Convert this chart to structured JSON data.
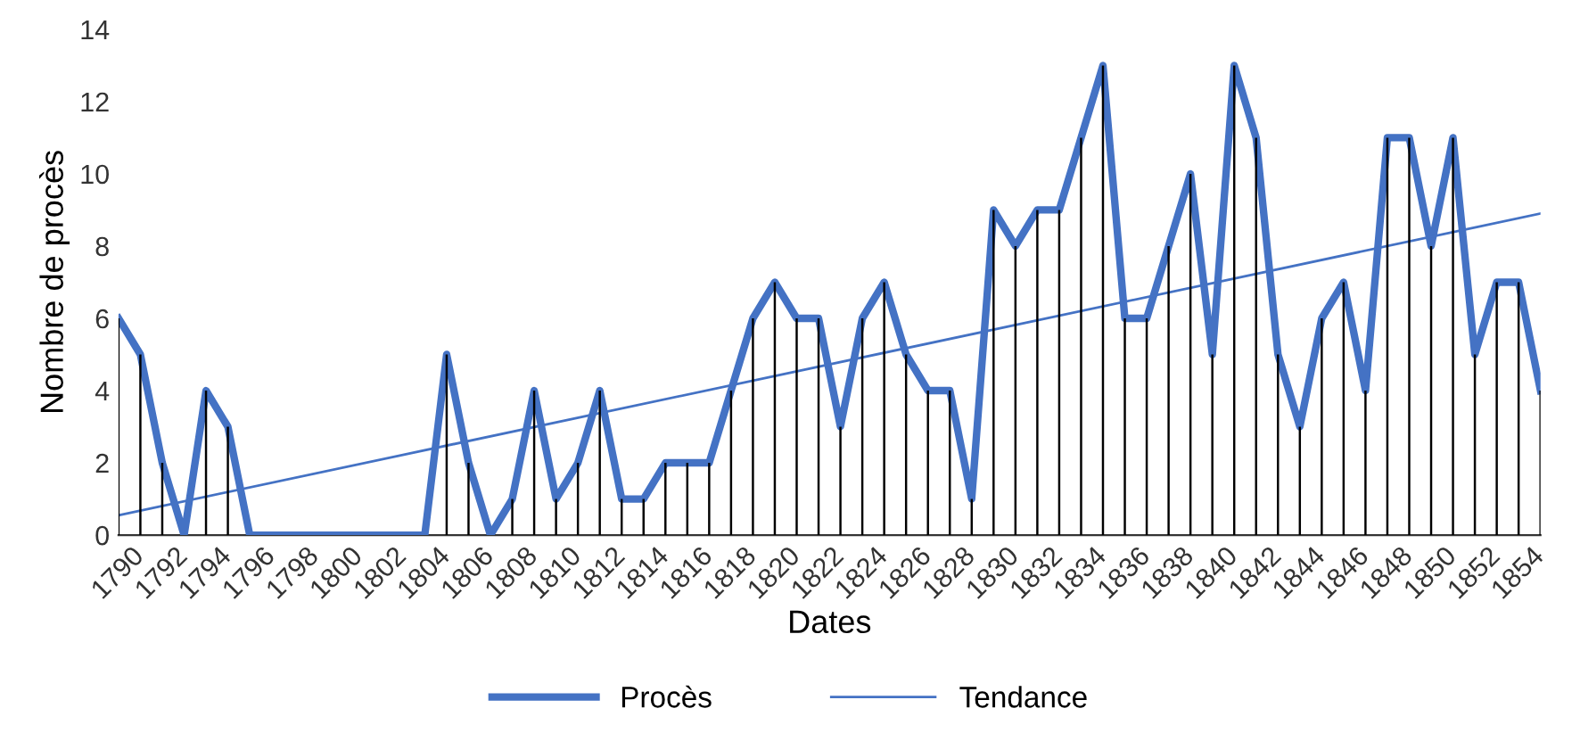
{
  "chart_data": {
    "type": "line",
    "xlabel": "Dates",
    "ylabel": "Nombre de procès",
    "x": [
      1790,
      1791,
      1792,
      1793,
      1794,
      1795,
      1796,
      1797,
      1798,
      1799,
      1800,
      1801,
      1802,
      1803,
      1804,
      1805,
      1806,
      1807,
      1808,
      1809,
      1810,
      1811,
      1812,
      1813,
      1814,
      1815,
      1816,
      1817,
      1818,
      1819,
      1820,
      1821,
      1822,
      1823,
      1824,
      1825,
      1826,
      1827,
      1828,
      1829,
      1830,
      1831,
      1832,
      1833,
      1834,
      1835,
      1836,
      1837,
      1838,
      1839,
      1840,
      1841,
      1842,
      1843,
      1844,
      1845,
      1846,
      1847,
      1848,
      1849,
      1850,
      1851,
      1852,
      1853,
      1854,
      1855
    ],
    "series": [
      {
        "name": "Procès",
        "color": "#4472c4",
        "values": [
          6,
          5,
          2,
          0,
          4,
          3,
          0,
          0,
          0,
          0,
          0,
          0,
          0,
          0,
          0,
          5,
          2,
          0,
          1,
          4,
          1,
          2,
          4,
          1,
          1,
          2,
          2,
          2,
          4,
          6,
          7,
          6,
          6,
          3,
          6,
          7,
          5,
          4,
          4,
          1,
          9,
          8,
          9,
          9,
          11,
          13,
          6,
          6,
          8,
          10,
          5,
          13,
          11,
          5,
          3,
          6,
          7,
          4,
          11,
          11,
          8,
          11,
          5,
          7,
          7,
          4
        ]
      },
      {
        "type": "bar",
        "color": "#000000",
        "values": [
          6,
          5,
          2,
          0,
          4,
          3,
          0,
          0,
          0,
          0,
          0,
          0,
          0,
          0,
          0,
          5,
          2,
          0,
          1,
          4,
          1,
          2,
          4,
          1,
          1,
          2,
          2,
          2,
          4,
          6,
          7,
          6,
          6,
          3,
          6,
          7,
          5,
          4,
          4,
          1,
          9,
          8,
          9,
          9,
          11,
          13,
          6,
          6,
          8,
          10,
          5,
          13,
          11,
          5,
          3,
          6,
          7,
          4,
          11,
          11,
          8,
          11,
          5,
          7,
          7,
          4
        ]
      },
      {
        "name": "Tendance",
        "color": "#4472c4",
        "type": "line",
        "x": [
          1790,
          1855
        ],
        "values": [
          0.55,
          8.9
        ]
      }
    ],
    "xlim": [
      1790,
      1855
    ],
    "xticks": [
      1790,
      1792,
      1794,
      1796,
      1798,
      1800,
      1802,
      1804,
      1806,
      1808,
      1810,
      1812,
      1814,
      1816,
      1818,
      1820,
      1822,
      1824,
      1826,
      1828,
      1830,
      1832,
      1834,
      1836,
      1838,
      1840,
      1842,
      1844,
      1846,
      1848,
      1850,
      1852,
      1854
    ],
    "ylim": [
      0,
      14
    ],
    "yticks": [
      0,
      2,
      4,
      6,
      8,
      10,
      12,
      14
    ],
    "grid": false,
    "legend": "bottom",
    "marker": "none",
    "line_style": "solid"
  }
}
